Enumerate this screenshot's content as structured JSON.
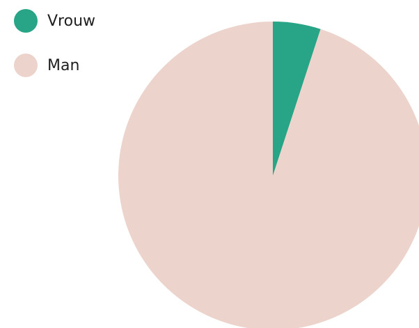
{
  "chart_data": {
    "type": "pie",
    "categories": [
      "Vrouw",
      "Man"
    ],
    "values": [
      5,
      95
    ],
    "colors": [
      "#27a586",
      "#ecd3cb"
    ],
    "legend_position": "top-left"
  }
}
